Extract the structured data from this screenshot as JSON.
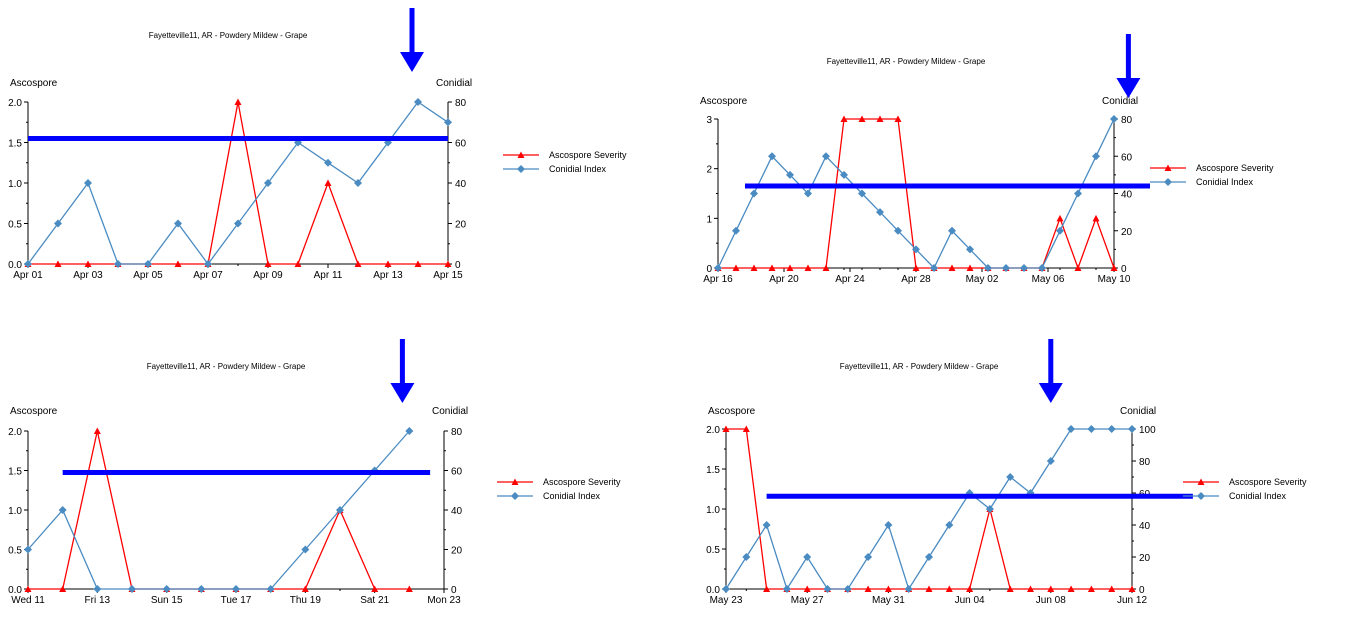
{
  "legend": {
    "ascospore_label": "Ascospore Severity",
    "conidial_label": "Conidial Index"
  },
  "colors": {
    "ascospore": "#ff0000",
    "conidial": "#4a8bc2",
    "marker": "#0000ff"
  },
  "chart_data": [
    {
      "type": "line",
      "title": "Fayetteville11, AR - Powdery Mildew - Grape",
      "ylabel_left": "Ascospore",
      "ylabel_right": "Conidial",
      "x": [
        "Apr 01",
        "Apr 02",
        "Apr 03",
        "Apr 04",
        "Apr 05",
        "Apr 06",
        "Apr 07",
        "Apr 08",
        "Apr 09",
        "Apr 10",
        "Apr 11",
        "Apr 12",
        "Apr 13",
        "Apr 14",
        "Apr 15"
      ],
      "xticks": [
        "Apr 01",
        "Apr 03",
        "Apr 05",
        "Apr 07",
        "Apr 09",
        "Apr 11",
        "Apr 13",
        "Apr 15"
      ],
      "left_ticks": [
        "0.0",
        "0.5",
        "1.0",
        "1.5",
        "2.0"
      ],
      "right_ticks": [
        "0",
        "20",
        "40",
        "60",
        "80"
      ],
      "ylim_left": [
        0,
        2
      ],
      "ylim_right": [
        0,
        80
      ],
      "series": [
        {
          "name": "Ascospore Severity",
          "axis": "left",
          "values": [
            0,
            0,
            0,
            0,
            0,
            0,
            0,
            2,
            0,
            0,
            1,
            0,
            0,
            0,
            0
          ]
        },
        {
          "name": "Conidial Index",
          "axis": "right",
          "values": [
            0,
            20,
            40,
            0,
            0,
            20,
            0,
            20,
            40,
            60,
            50,
            40,
            60,
            80,
            70
          ]
        }
      ],
      "threshold_level": 62,
      "threshold_range": [
        0,
        14
      ],
      "arrow_at": 12.8
    },
    {
      "type": "line",
      "title": "Fayetteville11, AR - Powdery Mildew - Grape",
      "ylabel_left": "Ascospore",
      "ylabel_right": "Conidial",
      "x": [
        "Apr 18",
        "Apr 19",
        "Apr 20",
        "Apr 21",
        "Apr 22",
        "Apr 23",
        "Apr 24",
        "Apr 25",
        "Apr 26",
        "Apr 27",
        "Apr 28",
        "Apr 29",
        "Apr 30",
        "May 01",
        "May 02",
        "May 03",
        "May 04",
        "May 05",
        "May 06",
        "May 07",
        "May 08",
        "May 09",
        "May 10"
      ],
      "xticks": [
        "Apr 16",
        "Apr 20",
        "Apr 24",
        "Apr 28",
        "May 02",
        "May 06",
        "May 10"
      ],
      "left_ticks": [
        "0",
        "1",
        "2",
        "3"
      ],
      "right_ticks": [
        "0",
        "20",
        "40",
        "60",
        "80"
      ],
      "ylim_left": [
        0,
        3
      ],
      "ylim_right": [
        0,
        80
      ],
      "series": [
        {
          "name": "Ascospore Severity",
          "axis": "left",
          "values": [
            0,
            0,
            0,
            0,
            0,
            0,
            0,
            3,
            3,
            3,
            3,
            0,
            0,
            0,
            0,
            0,
            0,
            0,
            0,
            1,
            0,
            1,
            0
          ]
        },
        {
          "name": "Conidial Index",
          "axis": "right",
          "values": [
            0,
            20,
            40,
            60,
            50,
            40,
            60,
            50,
            40,
            30,
            20,
            10,
            0,
            20,
            10,
            0,
            0,
            0,
            0,
            20,
            40,
            60,
            80
          ]
        }
      ],
      "threshold_level": 44,
      "threshold_range": [
        1.5,
        24
      ],
      "arrow_at": 22.8
    },
    {
      "type": "line",
      "title": "Fayetteville11, AR - Powdery Mildew - Grape",
      "ylabel_left": "Ascospore",
      "ylabel_right": "Conidial",
      "x": [
        "Wed 11",
        "Thu 12",
        "Fri 13",
        "Sat 14",
        "Sun 15",
        "Mon 16",
        "Tue 17",
        "Wed 18",
        "Thu 19",
        "Fri 20",
        "Sat 21",
        "Sun 22",
        "Mon 23"
      ],
      "xticks": [
        "Wed 11",
        "Fri 13",
        "Sun 15",
        "Tue 17",
        "Thu 19",
        "Sat 21",
        "Mon 23"
      ],
      "left_ticks": [
        "0.0",
        "0.5",
        "1.0",
        "1.5",
        "2.0"
      ],
      "right_ticks": [
        "0",
        "20",
        "40",
        "60",
        "80"
      ],
      "ylim_left": [
        0,
        2
      ],
      "ylim_right": [
        0,
        80
      ],
      "series": [
        {
          "name": "Ascospore Severity",
          "axis": "left",
          "values": [
            0,
            0,
            2,
            0,
            0,
            0,
            0,
            0,
            0,
            1,
            0,
            0,
            null
          ]
        },
        {
          "name": "Conidial Index",
          "axis": "right",
          "values": [
            20,
            40,
            0,
            0,
            0,
            0,
            0,
            0,
            20,
            40,
            60,
            80,
            null
          ]
        }
      ],
      "threshold_level": 59,
      "threshold_range": [
        1,
        11.6
      ],
      "arrow_at": 10.8
    },
    {
      "type": "line",
      "title": "Fayetteville11, AR - Powdery Mildew - Grape",
      "ylabel_left": "Ascospore",
      "ylabel_right": "Conidial",
      "x": [
        "May 23",
        "May 24",
        "May 25",
        "May 26",
        "May 27",
        "May 28",
        "May 29",
        "May 30",
        "May 31",
        "Jun 01",
        "Jun 02",
        "Jun 03",
        "Jun 04",
        "Jun 05",
        "Jun 06",
        "Jun 07",
        "Jun 08",
        "Jun 09",
        "Jun 10",
        "Jun 11",
        "Jun 12"
      ],
      "xticks": [
        "May 23",
        "May 27",
        "May 31",
        "Jun 04",
        "Jun 08",
        "Jun 12"
      ],
      "left_ticks": [
        "0.0",
        "0.5",
        "1.0",
        "1.5",
        "2.0"
      ],
      "right_ticks": [
        "0",
        "20",
        "40",
        "60",
        "80",
        "100"
      ],
      "ylim_left": [
        0,
        2
      ],
      "ylim_right": [
        0,
        100
      ],
      "series": [
        {
          "name": "Ascospore Severity",
          "axis": "left",
          "values": [
            2,
            2,
            0,
            0,
            0,
            0,
            0,
            0,
            0,
            0,
            0,
            0,
            0,
            1,
            0,
            0,
            0,
            0,
            0,
            0,
            0
          ]
        },
        {
          "name": "Conidial Index",
          "axis": "right",
          "values": [
            0,
            20,
            40,
            0,
            20,
            0,
            0,
            20,
            40,
            0,
            20,
            40,
            60,
            50,
            70,
            60,
            80,
            100,
            100,
            100,
            100
          ]
        }
      ],
      "threshold_level": 58,
      "threshold_range": [
        2,
        23
      ],
      "arrow_at": 16
    }
  ]
}
